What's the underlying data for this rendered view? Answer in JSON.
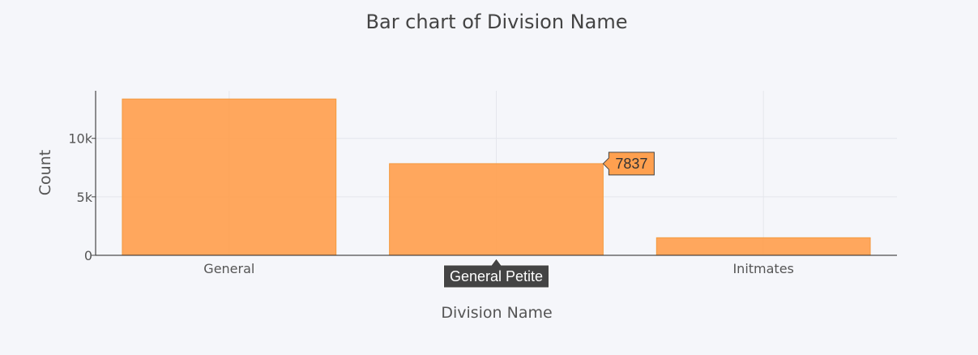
{
  "chart_data": {
    "type": "bar",
    "title": "Bar chart of Division Name",
    "xlabel": "Division Name",
    "ylabel": "Count",
    "categories": [
      "General",
      "General Petite",
      "Initmates"
    ],
    "values": [
      13365,
      7837,
      1502
    ],
    "ylim": [
      0,
      14069
    ],
    "yticks": [
      0,
      5000,
      10000
    ],
    "ytick_labels": [
      "0",
      "5k",
      "10k"
    ],
    "grid": true,
    "bar_color": "#ffa04f",
    "bar_edge_color": "#f39a3e",
    "hover": {
      "category": "General Petite",
      "value_label": "7837"
    }
  }
}
